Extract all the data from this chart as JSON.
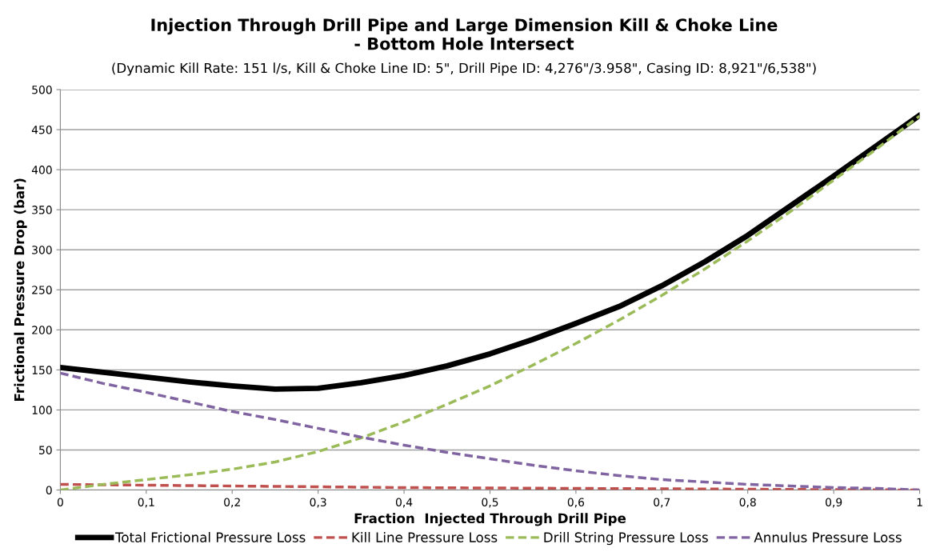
{
  "chart_data": {
    "type": "line",
    "title": "Injection Through Drill Pipe and Large Dimension Kill & Choke Line\n- Bottom Hole Intersect",
    "subtitle": "(Dynamic Kill Rate: 151 l/s, Kill & Choke Line ID: 5\", Drill Pipe ID: 4,276\"/3.958\", Casing ID: 8,921\"/6,538\")",
    "xlabel": "Fraction  Injected Through Drill Pipe",
    "ylabel": "Frictional Pressure Drop (bar)",
    "x": [
      0,
      0.05,
      0.1,
      0.15,
      0.2,
      0.25,
      0.3,
      0.35,
      0.4,
      0.45,
      0.5,
      0.55,
      0.6,
      0.65,
      0.7,
      0.75,
      0.8,
      0.85,
      0.9,
      0.95,
      1
    ],
    "series": [
      {
        "name": "Total Frictional Pressure Loss",
        "color": "#000000",
        "line_style": "solid",
        "values": [
          153,
          147,
          141,
          135,
          130,
          126,
          127,
          134,
          143,
          155,
          170,
          188,
          208,
          229,
          255,
          285,
          318,
          355,
          392,
          430,
          468
        ]
      },
      {
        "name": "Kill Line Pressure Loss",
        "color": "#c0504d",
        "line_style": "dashed",
        "x": [
          0,
          0.1,
          0.2,
          0.3,
          0.4,
          0.5,
          0.6,
          0.7,
          0.8,
          0.9,
          1
        ],
        "values": [
          7,
          6,
          5,
          4,
          3,
          2.5,
          2,
          1.5,
          1,
          0.5,
          0
        ]
      },
      {
        "name": "Drill String Pressure Loss",
        "color": "#9bbb59",
        "line_style": "dashed",
        "values": [
          0,
          7,
          13,
          19,
          26,
          35,
          48,
          65,
          85,
          107,
          130,
          156,
          183,
          212,
          243,
          276,
          311,
          348,
          387,
          426,
          467
        ]
      },
      {
        "name": "Annulus Pressure Loss",
        "color": "#8064a2",
        "line_style": "dashed",
        "values": [
          146,
          133,
          122,
          110,
          98,
          88,
          77,
          66,
          56,
          47,
          39,
          31,
          24,
          18,
          13,
          10,
          7,
          5,
          3,
          2,
          0
        ]
      }
    ],
    "xlim": [
      0,
      1
    ],
    "xticks": [
      0,
      {
        "value": 0.1,
        "label": "0,1"
      },
      {
        "value": 0.2,
        "label": "0,2"
      },
      {
        "value": 0.3,
        "label": "0,3"
      },
      {
        "value": 0.4,
        "label": "0,4"
      },
      {
        "value": 0.5,
        "label": "0,5"
      },
      {
        "value": 0.6,
        "label": "0,6"
      },
      {
        "value": 0.7,
        "label": "0,7"
      },
      {
        "value": 0.8,
        "label": "0,8"
      },
      {
        "value": 0.9,
        "label": "0,9"
      },
      1
    ],
    "ylim": [
      0,
      500
    ],
    "yticks": [
      0,
      50,
      100,
      150,
      200,
      250,
      300,
      350,
      400,
      450,
      500
    ],
    "grid": "y",
    "legend": "bottom",
    "marker": "none"
  }
}
